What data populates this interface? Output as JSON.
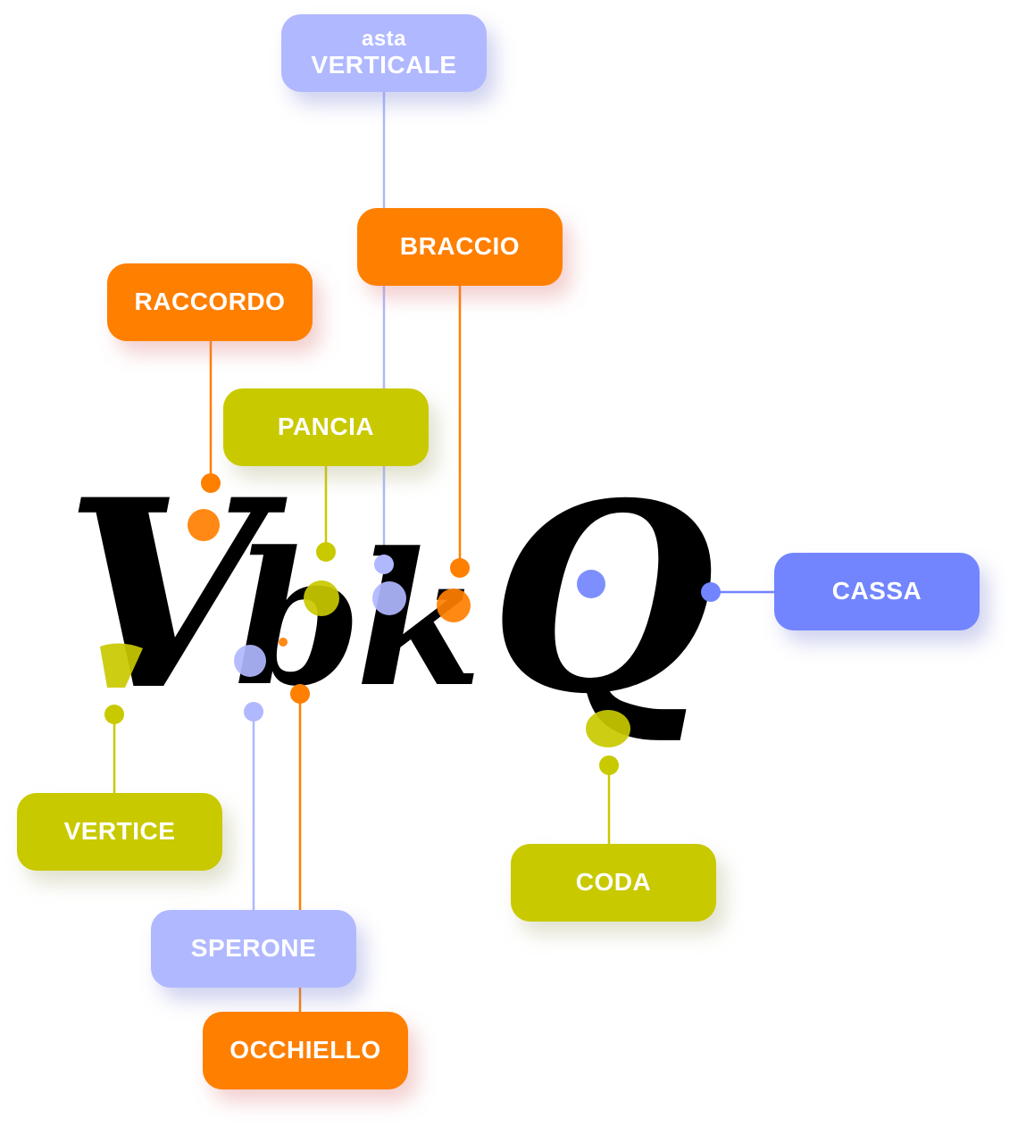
{
  "letters": [
    "V",
    "b",
    "k",
    "Q"
  ],
  "labels": {
    "asta_verticale": {
      "line1": "asta",
      "line2": "VERTICALE"
    },
    "braccio": "BRACCIO",
    "raccordo": "RACCORDO",
    "pancia": "PANCIA",
    "cassa": "CASSA",
    "vertice": "VERTICE",
    "coda": "CODA",
    "sperone": "SPERONE",
    "occhiello": "OCCHIELLO"
  },
  "colors": {
    "orange": "#FF7F00",
    "olive": "#C9C900",
    "lavender": "#B0B8FF",
    "blue": "#7285FF",
    "glyph": "#000000"
  }
}
